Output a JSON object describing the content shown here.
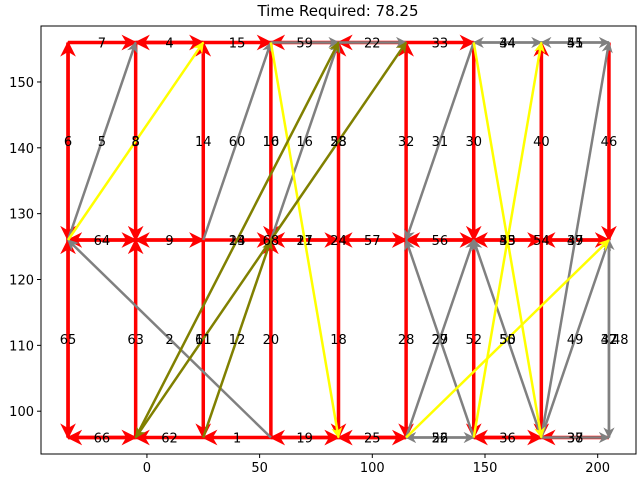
{
  "chart_data": {
    "type": "network",
    "title": "Time Required: 78.25",
    "xlim": [
      -47,
      217
    ],
    "ylim": [
      93.5,
      158.5
    ],
    "xticks": [
      0,
      50,
      100,
      150,
      200
    ],
    "yticks": [
      100,
      110,
      120,
      130,
      140,
      150
    ],
    "colors": {
      "red": "#ff0000",
      "gray": "#808080",
      "yellow": "#ffff00",
      "olive": "#808000"
    },
    "edges": [
      {
        "from": [
          -35,
          156
        ],
        "to": [
          -5,
          156
        ],
        "color": "red",
        "label": "7"
      },
      {
        "from": [
          -5,
          156
        ],
        "to": [
          25,
          156
        ],
        "color": "red",
        "label": "4"
      },
      {
        "from": [
          25,
          156
        ],
        "to": [
          -5,
          156
        ],
        "color": "red"
      },
      {
        "from": [
          25,
          156
        ],
        "to": [
          55,
          156
        ],
        "color": "red",
        "label": "15"
      },
      {
        "from": [
          55,
          156
        ],
        "to": [
          85,
          156
        ],
        "color": "gray",
        "label": "59"
      },
      {
        "from": [
          85,
          156
        ],
        "to": [
          55,
          156
        ],
        "color": "red"
      },
      {
        "from": [
          85,
          156
        ],
        "to": [
          115,
          156
        ],
        "color": "gray",
        "label": "22"
      },
      {
        "from": [
          115,
          156
        ],
        "to": [
          85,
          156
        ],
        "color": "red"
      },
      {
        "from": [
          115,
          156
        ],
        "to": [
          145,
          156
        ],
        "color": "red",
        "label": "33"
      },
      {
        "from": [
          145,
          156
        ],
        "to": [
          175,
          156
        ],
        "color": "gray",
        "label": "34"
      },
      {
        "from": [
          175,
          156
        ],
        "to": [
          145,
          156
        ],
        "color": "gray",
        "label": "44"
      },
      {
        "from": [
          175,
          156
        ],
        "to": [
          205,
          156
        ],
        "color": "gray",
        "label": "45"
      },
      {
        "from": [
          205,
          156
        ],
        "to": [
          175,
          156
        ],
        "color": "gray",
        "label": "51"
      },
      {
        "from": [
          -35,
          126
        ],
        "to": [
          -35,
          156
        ],
        "color": "red",
        "label": "6"
      },
      {
        "from": [
          -35,
          156
        ],
        "to": [
          -35,
          126
        ],
        "color": "red"
      },
      {
        "from": [
          -35,
          126
        ],
        "to": [
          -5,
          156
        ],
        "color": "gray",
        "label": "5"
      },
      {
        "from": [
          -35,
          126
        ],
        "to": [
          25,
          156
        ],
        "color": "yellow",
        "label": "8"
      },
      {
        "from": [
          -5,
          156
        ],
        "to": [
          -5,
          126
        ],
        "color": "red",
        "label": "3"
      },
      {
        "from": [
          25,
          126
        ],
        "to": [
          25,
          156
        ],
        "color": "red",
        "label": "14"
      },
      {
        "from": [
          25,
          126
        ],
        "to": [
          55,
          156
        ],
        "color": "gray",
        "label": "60"
      },
      {
        "from": [
          55,
          156
        ],
        "to": [
          55,
          126
        ],
        "color": "red",
        "label": "10"
      },
      {
        "from": [
          55,
          126
        ],
        "to": [
          85,
          156
        ],
        "color": "gray",
        "label": "16"
      },
      {
        "from": [
          55,
          156
        ],
        "to": [
          85,
          96
        ],
        "color": "yellow",
        "label": "21"
      },
      {
        "from": [
          -5,
          96
        ],
        "to": [
          85,
          156
        ],
        "color": "olive",
        "label": "24"
      },
      {
        "from": [
          85,
          126
        ],
        "to": [
          85,
          156
        ],
        "color": "red",
        "label": "58"
      },
      {
        "from": [
          55,
          126
        ],
        "to": [
          115,
          156
        ],
        "color": "olive",
        "label": "23"
      },
      {
        "from": [
          115,
          126
        ],
        "to": [
          115,
          156
        ],
        "color": "red",
        "label": "32"
      },
      {
        "from": [
          145,
          156
        ],
        "to": [
          115,
          126
        ],
        "color": "gray",
        "label": "31"
      },
      {
        "from": [
          145,
          156
        ],
        "to": [
          145,
          126
        ],
        "color": "red",
        "label": "30"
      },
      {
        "from": [
          145,
          156
        ],
        "to": [
          175,
          96
        ],
        "color": "yellow"
      },
      {
        "from": [
          145,
          96
        ],
        "to": [
          175,
          156
        ],
        "color": "yellow"
      },
      {
        "from": [
          175,
          126
        ],
        "to": [
          175,
          156
        ],
        "color": "red",
        "label": "40"
      },
      {
        "from": [
          205,
          156
        ],
        "to": [
          205,
          126
        ],
        "color": "red",
        "label": "46"
      },
      {
        "from": [
          175,
          96
        ],
        "to": [
          205,
          156
        ],
        "color": "gray"
      },
      {
        "from": [
          -5,
          126
        ],
        "to": [
          -35,
          126
        ],
        "color": "red",
        "label": "64"
      },
      {
        "from": [
          -35,
          126
        ],
        "to": [
          -5,
          126
        ],
        "color": "red"
      },
      {
        "from": [
          -5,
          126
        ],
        "to": [
          25,
          126
        ],
        "color": "red",
        "label": "9"
      },
      {
        "from": [
          25,
          126
        ],
        "to": [
          -5,
          126
        ],
        "color": "red"
      },
      {
        "from": [
          25,
          126
        ],
        "to": [
          55,
          126
        ],
        "color": "red",
        "label": "13"
      },
      {
        "from": [
          55,
          126
        ],
        "to": [
          85,
          126
        ],
        "color": "red",
        "label": "17"
      },
      {
        "from": [
          85,
          126
        ],
        "to": [
          55,
          126
        ],
        "color": "red"
      },
      {
        "from": [
          85,
          126
        ],
        "to": [
          115,
          126
        ],
        "color": "red",
        "label": "57"
      },
      {
        "from": [
          115,
          126
        ],
        "to": [
          85,
          126
        ],
        "color": "red"
      },
      {
        "from": [
          115,
          126
        ],
        "to": [
          145,
          126
        ],
        "color": "red",
        "label": "56"
      },
      {
        "from": [
          145,
          126
        ],
        "to": [
          115,
          126
        ],
        "color": "red"
      },
      {
        "from": [
          145,
          126
        ],
        "to": [
          175,
          126
        ],
        "color": "red",
        "label": "53"
      },
      {
        "from": [
          175,
          126
        ],
        "to": [
          145,
          126
        ],
        "color": "red",
        "label": "43"
      },
      {
        "from": [
          175,
          126
        ],
        "to": [
          205,
          126
        ],
        "color": "red",
        "label": "39"
      },
      {
        "from": [
          205,
          126
        ],
        "to": [
          175,
          126
        ],
        "color": "red",
        "label": "47"
      },
      {
        "from": [
          -35,
          96
        ],
        "to": [
          -35,
          126
        ],
        "color": "red",
        "label": "65"
      },
      {
        "from": [
          -35,
          126
        ],
        "to": [
          -35,
          96
        ],
        "color": "red"
      },
      {
        "from": [
          -5,
          96
        ],
        "to": [
          -5,
          126
        ],
        "color": "red",
        "label": "63"
      },
      {
        "from": [
          55,
          96
        ],
        "to": [
          -35,
          126
        ],
        "color": "gray",
        "label": "2"
      },
      {
        "from": [
          25,
          126
        ],
        "to": [
          25,
          96
        ],
        "color": "red",
        "label": "61"
      },
      {
        "from": [
          25,
          96
        ],
        "to": [
          55,
          126
        ],
        "color": "olive",
        "label": "12"
      },
      {
        "from": [
          55,
          96
        ],
        "to": [
          55,
          126
        ],
        "color": "red",
        "label": "20"
      },
      {
        "from": [
          55,
          126
        ],
        "to": [
          -5,
          96
        ],
        "color": "olive",
        "label": "11"
      },
      {
        "from": [
          85,
          126
        ],
        "to": [
          85,
          96
        ],
        "color": "red",
        "label": "18"
      },
      {
        "from": [
          115,
          126
        ],
        "to": [
          115,
          96
        ],
        "color": "red",
        "label": "28"
      },
      {
        "from": [
          115,
          96
        ],
        "to": [
          145,
          126
        ],
        "color": "gray",
        "label": "27"
      },
      {
        "from": [
          145,
          96
        ],
        "to": [
          115,
          126
        ],
        "color": "gray",
        "label": "29"
      },
      {
        "from": [
          145,
          126
        ],
        "to": [
          145,
          96
        ],
        "color": "red",
        "label": "52"
      },
      {
        "from": [
          175,
          96
        ],
        "to": [
          145,
          126
        ],
        "color": "gray",
        "label": "55"
      },
      {
        "from": [
          175,
          156
        ],
        "to": [
          175,
          96
        ],
        "color": "red",
        "label": "54"
      },
      {
        "from": [
          115,
          96
        ],
        "to": [
          205,
          126
        ],
        "color": "yellow",
        "label": "50"
      },
      {
        "from": [
          175,
          96
        ],
        "to": [
          205,
          126
        ],
        "color": "gray",
        "label": "49"
      },
      {
        "from": [
          205,
          126
        ],
        "to": [
          205,
          96
        ],
        "color": "gray",
        "label": "37"
      },
      {
        "from": [
          205,
          96
        ],
        "to": [
          205,
          126
        ],
        "color": "gray",
        "label": "42"
      },
      {
        "from": [
          -35,
          96
        ],
        "to": [
          -5,
          96
        ],
        "color": "red",
        "label": "66"
      },
      {
        "from": [
          -5,
          96
        ],
        "to": [
          -35,
          96
        ],
        "color": "red"
      },
      {
        "from": [
          25,
          96
        ],
        "to": [
          -5,
          96
        ],
        "color": "red",
        "label": "62"
      },
      {
        "from": [
          55,
          96
        ],
        "to": [
          25,
          96
        ],
        "color": "red",
        "label": "1"
      },
      {
        "from": [
          55,
          96
        ],
        "to": [
          85,
          96
        ],
        "color": "red",
        "label": "19"
      },
      {
        "from": [
          85,
          96
        ],
        "to": [
          55,
          96
        ],
        "color": "red"
      },
      {
        "from": [
          85,
          96
        ],
        "to": [
          115,
          96
        ],
        "color": "red",
        "label": "25"
      },
      {
        "from": [
          115,
          96
        ],
        "to": [
          85,
          96
        ],
        "color": "red"
      },
      {
        "from": [
          115,
          96
        ],
        "to": [
          145,
          96
        ],
        "color": "gray",
        "label": "26"
      },
      {
        "from": [
          145,
          96
        ],
        "to": [
          115,
          96
        ],
        "color": "gray",
        "label": "52"
      },
      {
        "from": [
          145,
          96
        ],
        "to": [
          175,
          96
        ],
        "color": "red",
        "label": "36"
      },
      {
        "from": [
          175,
          96
        ],
        "to": [
          145,
          96
        ],
        "color": "red"
      },
      {
        "from": [
          175,
          96
        ],
        "to": [
          205,
          96
        ],
        "color": "gray",
        "label": "38"
      },
      {
        "from": [
          205,
          96
        ],
        "to": [
          175,
          96
        ],
        "color": "red",
        "label": "37"
      }
    ],
    "extra_labels": [
      {
        "at": [
          -5,
          141
        ],
        "text": "8"
      },
      {
        "at": [
          85,
          126
        ],
        "text": "24"
      },
      {
        "at": [
          55,
          126
        ],
        "text": "68"
      },
      {
        "at": [
          160,
          126
        ],
        "text": "35"
      },
      {
        "at": [
          160,
          111
        ],
        "text": "50"
      },
      {
        "at": [
          210,
          111
        ],
        "text": "48"
      },
      {
        "at": [
          55,
          141
        ],
        "text": "16"
      }
    ]
  }
}
